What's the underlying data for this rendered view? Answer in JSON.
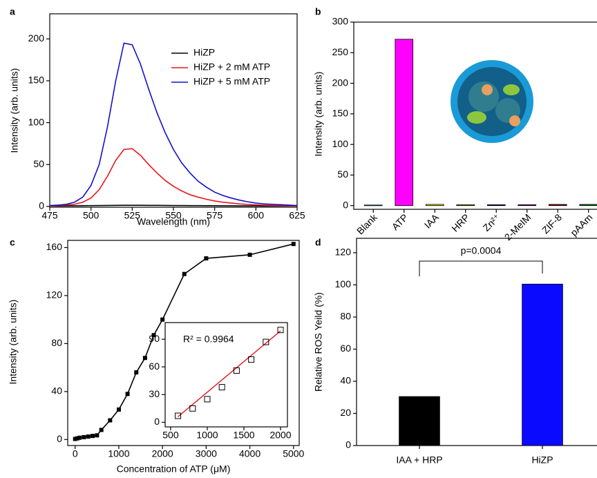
{
  "chart_data": [
    {
      "type": "line",
      "panel": "a",
      "xlabel": "Wavelength (nm)",
      "ylabel": "Intensity (arb. units)",
      "x": [
        475,
        480,
        485,
        490,
        495,
        500,
        505,
        510,
        515,
        520,
        525,
        530,
        535,
        540,
        545,
        550,
        555,
        560,
        565,
        570,
        575,
        580,
        585,
        590,
        595,
        600,
        605,
        610,
        615,
        620,
        625
      ],
      "series": [
        {
          "name": "HiZP",
          "color": "#000000",
          "values": [
            0.5,
            0.5,
            0.6,
            0.7,
            0.8,
            0.9,
            1,
            1.1,
            1.2,
            1.3,
            1.3,
            1.3,
            1.2,
            1.2,
            1.1,
            1,
            1,
            0.9,
            0.9,
            0.8,
            0.8,
            0.7,
            0.7,
            0.6,
            0.6,
            0.6,
            0.5,
            0.5,
            0.5,
            0.5,
            0.5
          ]
        },
        {
          "name": "HiZP + 2 mM ATP",
          "color": "#e8141c",
          "values": [
            0.5,
            1,
            1.5,
            2.5,
            5,
            10,
            20,
            36,
            55,
            68,
            69,
            61,
            50,
            40,
            31,
            24,
            18.5,
            14,
            11,
            8.5,
            6.5,
            5,
            4,
            3,
            2.3,
            1.8,
            1.4,
            1.1,
            0.9,
            0.7,
            0.5
          ]
        },
        {
          "name": "HiZP + 5 mM ATP",
          "color": "#1010c8",
          "values": [
            1,
            1.5,
            2.5,
            5,
            11,
            25,
            50,
            95,
            150,
            195,
            193,
            170,
            140,
            112,
            88,
            68,
            52,
            40,
            30,
            23,
            17,
            13,
            10,
            7.5,
            5.5,
            4,
            3,
            2.5,
            2,
            1.5,
            1
          ]
        }
      ],
      "xlim": [
        475,
        625
      ],
      "xticks": [
        475,
        500,
        525,
        550,
        575,
        600,
        625
      ],
      "ylim": [
        -1,
        230
      ],
      "yticks": [
        0,
        50,
        100,
        150,
        200
      ]
    },
    {
      "type": "bar",
      "panel": "b",
      "ylabel": "Intensity (arb. units)",
      "categories": [
        "Blank",
        "ATP",
        "IAA",
        "HRP",
        "Zn²⁺",
        "2-MeIM",
        "ZIF-8",
        "pAAm"
      ],
      "values": [
        1,
        272,
        2,
        1.5,
        1.5,
        1.5,
        2,
        2
      ],
      "colors": [
        "#5ee0ea",
        "#ff00ff",
        "#e6e600",
        "#a0a000",
        "#0a0a80",
        "#800080",
        "#a00000",
        "#008000"
      ],
      "ylim": [
        -6,
        300
      ],
      "yticks": [
        0,
        50,
        100,
        150,
        200,
        250,
        300
      ]
    },
    {
      "type": "line",
      "panel": "c",
      "xlabel": "Concentration of ATP (μM)",
      "ylabel": "Intensity (arb. units)",
      "x": [
        0,
        50,
        100,
        200,
        300,
        400,
        500,
        600,
        800,
        1000,
        1200,
        1400,
        1600,
        1800,
        2000,
        2500,
        3000,
        4000,
        5000
      ],
      "values": [
        0.5,
        1,
        1.5,
        2,
        2.5,
        3,
        3.5,
        8,
        16,
        25,
        38,
        56,
        68,
        87,
        100,
        138,
        151,
        154,
        163
      ],
      "color": "#000000",
      "marker": "square",
      "xlim": [
        -170,
        5130
      ],
      "xticks": [
        0,
        1000,
        2000,
        3000,
        4000,
        5000
      ],
      "ylim": [
        -5,
        166
      ],
      "yticks": [
        0,
        40,
        80,
        120,
        160
      ]
    },
    {
      "type": "scatter",
      "annotation": "R² = 0.9964",
      "x": [
        600,
        800,
        1000,
        1200,
        1400,
        1600,
        1800,
        2000
      ],
      "values": [
        7,
        15,
        25,
        38,
        56,
        68,
        87,
        100
      ],
      "color": "#000000",
      "fit": {
        "x": [
          600,
          2000
        ],
        "values": [
          6,
          99
        ],
        "color": "#e8141c"
      },
      "xlim": [
        425,
        2094
      ],
      "xticks": [
        500,
        1000,
        1500,
        2000
      ],
      "ylim": [
        -5,
        108
      ],
      "yticks": [
        0,
        30,
        60,
        90
      ]
    },
    {
      "type": "bar",
      "panel": "d",
      "ylabel": "Relative ROS Yeild (%)",
      "annotation": "p=0.0004",
      "categories": [
        "IAA + HRP",
        "HiZP"
      ],
      "values": [
        30.5,
        100.5
      ],
      "colors": [
        "#000000",
        "#0a0aff"
      ],
      "ylim": [
        0,
        129
      ],
      "yticks": [
        0,
        20,
        40,
        60,
        80,
        100,
        120
      ]
    }
  ]
}
